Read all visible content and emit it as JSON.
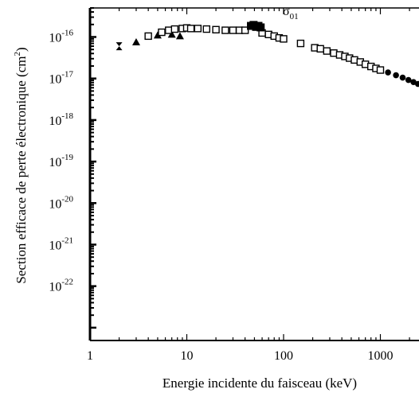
{
  "chart_data": {
    "type": "scatter",
    "title": "",
    "xlabel": "Energie incidente du faisceau (keV)",
    "ylabel": "Section efficace de perte électronique (cm",
    "ylabel_sup": "2",
    "ylabel_close": ")",
    "x_scale": "log",
    "y_scale": "log",
    "xlim": [
      1,
      2500
    ],
    "ylim": [
      1e-23,
      5e-16
    ],
    "grid": false,
    "legend": "none",
    "x_ticks": [
      {
        "value": 1,
        "label": "1"
      },
      {
        "value": 10,
        "label": "10"
      },
      {
        "value": 100,
        "label": "100"
      },
      {
        "value": 1000,
        "label": "1000"
      }
    ],
    "y_ticks": [
      {
        "value": 1e-16,
        "base": "10",
        "exp": "-16"
      },
      {
        "value": 1e-17,
        "base": "10",
        "exp": "-17"
      },
      {
        "value": 1e-18,
        "base": "10",
        "exp": "-18"
      },
      {
        "value": 1e-19,
        "base": "10",
        "exp": "-19"
      },
      {
        "value": 1e-20,
        "base": "10",
        "exp": "-20"
      },
      {
        "value": 1e-21,
        "base": "10",
        "exp": "-21"
      },
      {
        "value": 1e-22,
        "base": "10",
        "exp": "-22"
      }
    ],
    "annotation": {
      "symbol": "σ",
      "sub": "01",
      "x": 100,
      "y": 3.2e-16
    },
    "series": [
      {
        "marker": "hourglass",
        "points": [
          [
            2,
            6e-17
          ]
        ]
      },
      {
        "marker": "triangle",
        "points": [
          [
            3,
            7.5e-17
          ],
          [
            5,
            1.1e-16
          ],
          [
            7,
            1.15e-16
          ],
          [
            8.5,
            1.05e-16
          ]
        ]
      },
      {
        "marker": "square-open",
        "points": [
          [
            4,
            1.05e-16
          ],
          [
            5.5,
            1.3e-16
          ],
          [
            6.5,
            1.45e-16
          ],
          [
            7.5,
            1.55e-16
          ],
          [
            9,
            1.6e-16
          ],
          [
            10,
            1.65e-16
          ],
          [
            11,
            1.6e-16
          ],
          [
            13,
            1.6e-16
          ],
          [
            16,
            1.55e-16
          ],
          [
            20,
            1.5e-16
          ],
          [
            25,
            1.45e-16
          ],
          [
            30,
            1.45e-16
          ],
          [
            35,
            1.45e-16
          ],
          [
            40,
            1.45e-16
          ],
          [
            60,
            1.25e-16
          ],
          [
            70,
            1.15e-16
          ],
          [
            80,
            1.05e-16
          ],
          [
            90,
            9.5e-17
          ],
          [
            100,
            9e-17
          ],
          [
            150,
            7e-17
          ],
          [
            210,
            5.5e-17
          ],
          [
            240,
            5.2e-17
          ],
          [
            280,
            4.6e-17
          ],
          [
            330,
            4.1e-17
          ],
          [
            380,
            3.7e-17
          ],
          [
            430,
            3.4e-17
          ],
          [
            480,
            3.1e-17
          ],
          [
            540,
            2.8e-17
          ],
          [
            620,
            2.5e-17
          ],
          [
            700,
            2.2e-17
          ],
          [
            800,
            1.95e-17
          ],
          [
            900,
            1.75e-17
          ],
          [
            1000,
            1.6e-17
          ]
        ]
      },
      {
        "marker": "square-filled",
        "points": [
          [
            46,
            1.85e-16
          ],
          [
            49,
            1.95e-16
          ],
          [
            52,
            1.75e-16
          ],
          [
            55,
            1.85e-16
          ],
          [
            58,
            1.7e-16
          ]
        ]
      },
      {
        "marker": "circle-filled",
        "points": [
          [
            1200,
            1.4e-17
          ],
          [
            1450,
            1.2e-17
          ],
          [
            1700,
            1.05e-17
          ],
          [
            1950,
            9.2e-18
          ],
          [
            2200,
            8.2e-18
          ],
          [
            2450,
            7.4e-18
          ]
        ]
      }
    ]
  }
}
